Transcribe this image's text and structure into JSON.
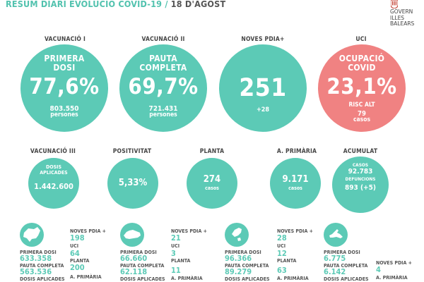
{
  "header": {
    "title": "RESUM DIARI EVOLUCIÓ COVID-19",
    "separator": "/",
    "date": "18 D'AGOST",
    "logo_text": "GOVERN\nILLES\nBALEARS"
  },
  "top": {
    "vac1": {
      "label": "VACUNACIÓ I",
      "title1": "PRIMERA",
      "title2": "DOSI",
      "value": "77,6%",
      "count": "803.550",
      "unit": "persones"
    },
    "vac2": {
      "label": "VACUNACIÓ II",
      "title1": "PAUTA",
      "title2": "COMPLETA",
      "value": "69,7%",
      "count": "721.431",
      "unit": "persones"
    },
    "pdia": {
      "label": "NOVES PDIA+",
      "value": "251",
      "delta": "+28"
    },
    "uci": {
      "label": "UCI",
      "title1": "OCUPACIÓ",
      "title2": "COVID",
      "value": "23,1%",
      "risk": "RISC ALT",
      "cases": "79",
      "cases_unit": "casos"
    }
  },
  "mid": {
    "vac3": {
      "label": "VACUNACIÓ III",
      "title1": "DOSIS",
      "title2": "APLICADES",
      "value": "1.442.600"
    },
    "posit": {
      "label": "POSITIVITAT",
      "value": "5,33%"
    },
    "planta": {
      "label": "PLANTA",
      "value": "274",
      "unit": "casos"
    },
    "primaria": {
      "label": "A. PRIMÀRIA",
      "value": "9.171",
      "unit": "casos"
    },
    "acum": {
      "label": "ACUMULAT",
      "cases_label": "CASOS",
      "cases": "92.783",
      "def_label": "DEFUNCIONS",
      "def": "893 (+5)"
    }
  },
  "islands": [
    {
      "name": "mallorca",
      "left": [
        {
          "label": "PRIMERA DOSI",
          "value": "633.358"
        },
        {
          "label": "PAUTA COMPLETA",
          "value": "563.536"
        },
        {
          "label": "DOSIS APLICADES",
          "value": ""
        }
      ],
      "right": [
        {
          "label": "NOVES PDIA +",
          "value": "198"
        },
        {
          "label": "UCI",
          "value": "64"
        },
        {
          "label": "PLANTA",
          "value": "200"
        },
        {
          "label": "A. PRIMÀRIA",
          "value": ""
        }
      ]
    },
    {
      "name": "menorca",
      "left": [
        {
          "label": "PRIMERA DOSI",
          "value": "66.660"
        },
        {
          "label": "PAUTA COMPLETA",
          "value": "62.118"
        },
        {
          "label": "DOSIS APLICADES",
          "value": ""
        }
      ],
      "right": [
        {
          "label": "NOVES PDIA +",
          "value": "21"
        },
        {
          "label": "UCI",
          "value": "3"
        },
        {
          "label": "PLANTA",
          "value": "11"
        },
        {
          "label": "A. PRIMÀRIA",
          "value": ""
        }
      ]
    },
    {
      "name": "eivissa",
      "left": [
        {
          "label": "PRIMERA DOSI",
          "value": "96.366"
        },
        {
          "label": "PAUTA COMPLETA",
          "value": "89.279"
        },
        {
          "label": "DOSIS APLICADES",
          "value": ""
        }
      ],
      "right": [
        {
          "label": "NOVES PDIA +",
          "value": "28"
        },
        {
          "label": "UCI",
          "value": "12"
        },
        {
          "label": "PLANTA",
          "value": "63"
        },
        {
          "label": "A. PRIMÀRIA",
          "value": ""
        }
      ]
    },
    {
      "name": "formentera",
      "left": [
        {
          "label": "PRIMERA DOSI",
          "value": "6.775"
        },
        {
          "label": "PAUTA COMPLETA",
          "value": "6.142"
        },
        {
          "label": "DOSIS APLICADES",
          "value": ""
        }
      ],
      "right": [
        {
          "label": "NOVES PDIA +",
          "value": "4"
        },
        {
          "label": "A. PRIMÀRIA",
          "value": ""
        }
      ]
    }
  ],
  "colors": {
    "teal": "#5ccab6",
    "red": "#f08282",
    "logo_red": "#c0392b"
  }
}
